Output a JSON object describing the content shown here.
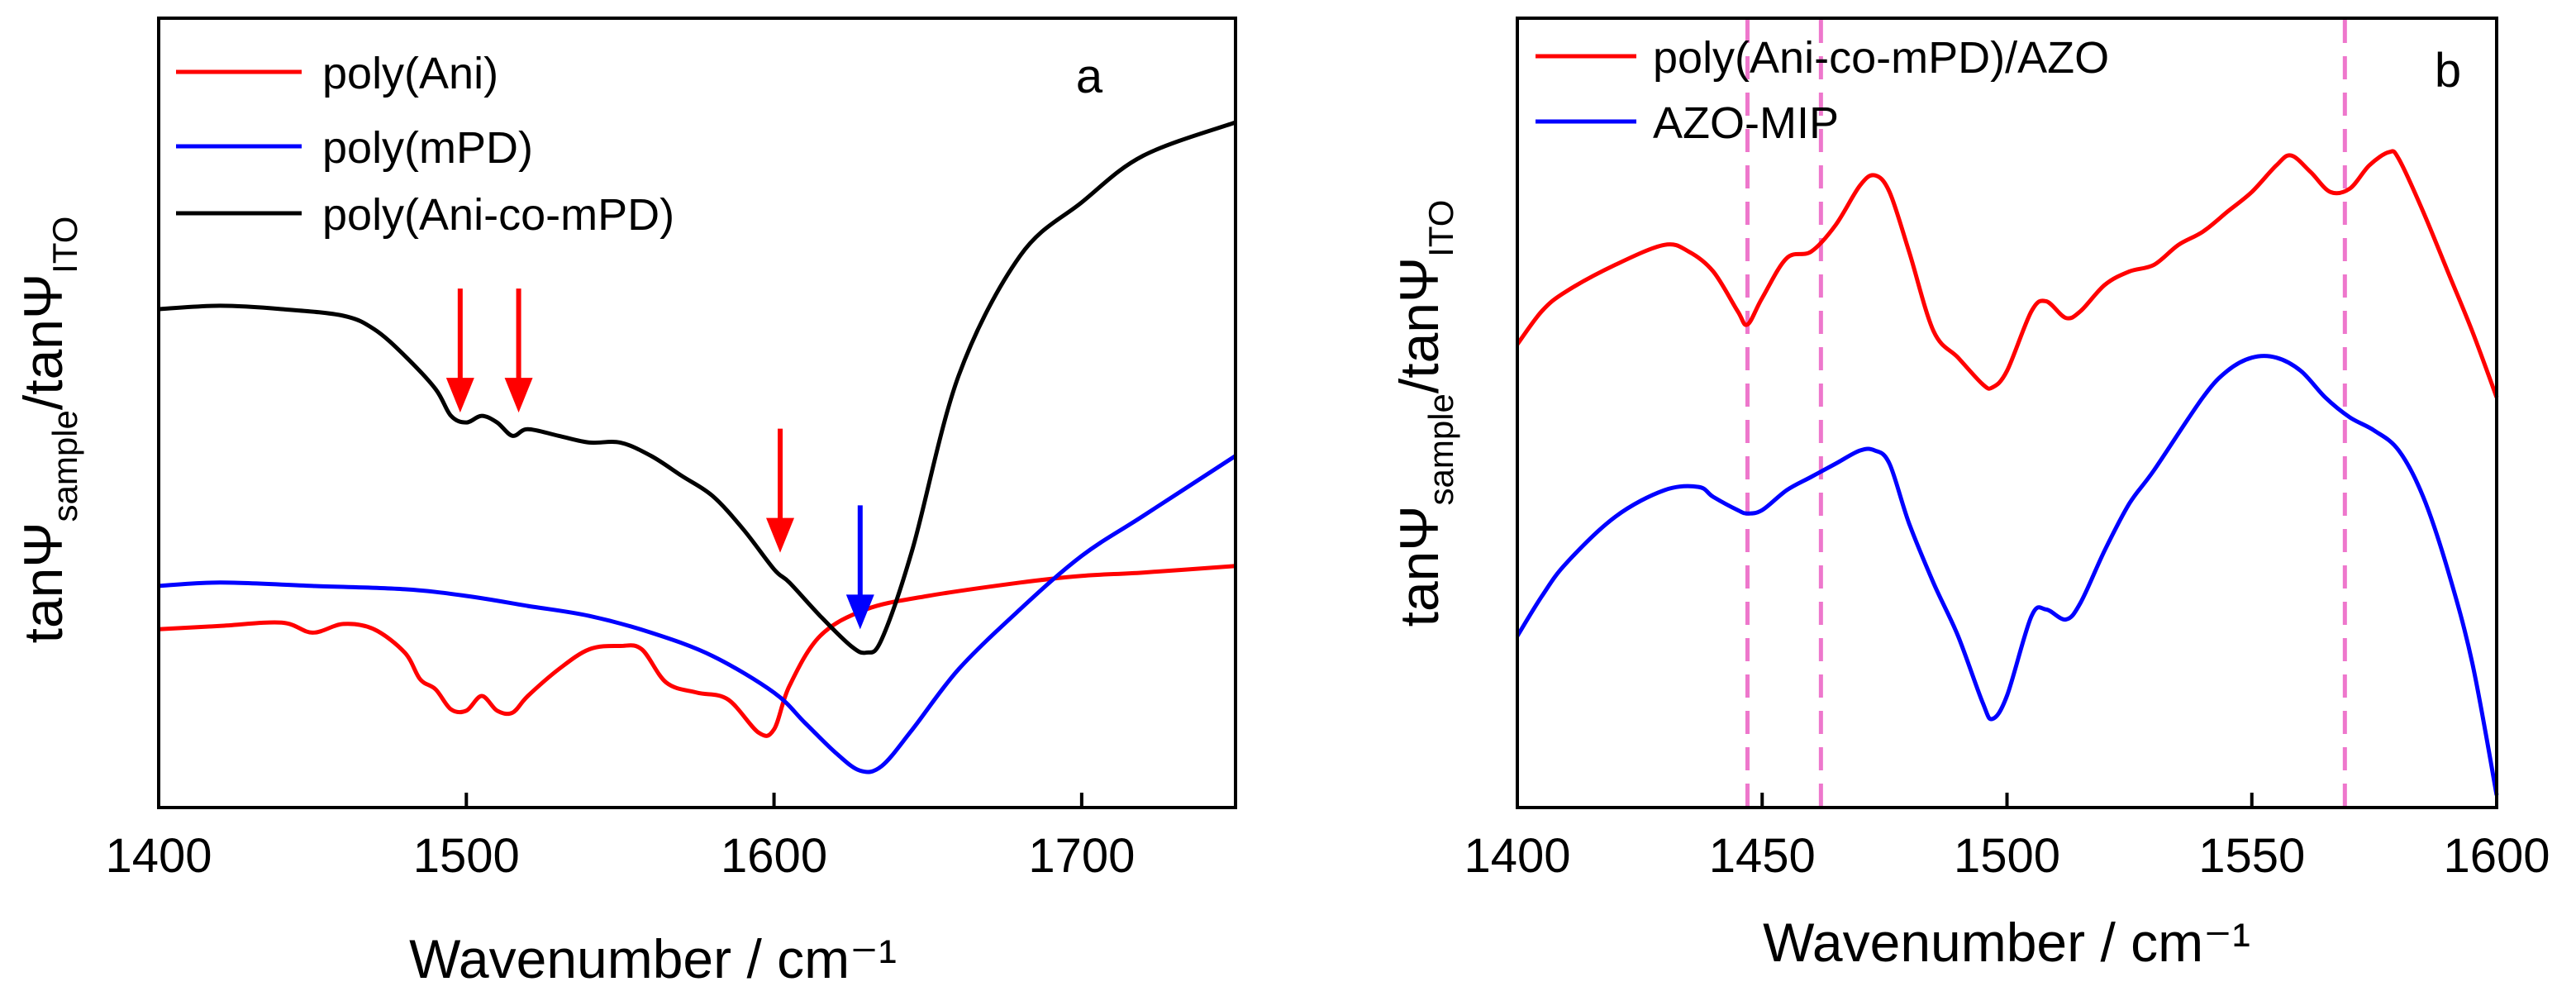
{
  "chart_data": [
    {
      "id": "a",
      "type": "line",
      "panel_label": "a",
      "xlabel": "Wavenumber / cm⁻¹",
      "ylabel": {
        "main": "tanΨ",
        "sub1": "sample",
        "slash": "/tanΨ",
        "sub2": "ITO"
      },
      "xlim": [
        1400,
        1750
      ],
      "ylim": [
        0,
        1
      ],
      "xticks": [
        "1400",
        "1500",
        "1600",
        "1700"
      ],
      "xtick_values": [
        1400,
        1500,
        1600,
        1700
      ],
      "legend": [
        "poly(Ani)",
        "poly(mPD)",
        "poly(Ani-co-mPD)"
      ],
      "series": [
        {
          "name": "poly(Ani)",
          "color": "#ff0000",
          "x": [
            1400,
            1420,
            1440,
            1450,
            1460,
            1470,
            1480,
            1485,
            1490,
            1495,
            1500,
            1505,
            1510,
            1515,
            1520,
            1530,
            1540,
            1550,
            1557,
            1565,
            1575,
            1585,
            1595,
            1600,
            1605,
            1615,
            1630,
            1650,
            1680,
            1700,
            1720,
            1750
          ],
          "y": [
            0.24,
            0.245,
            0.25,
            0.235,
            0.248,
            0.24,
            0.205,
            0.165,
            0.15,
            0.12,
            0.118,
            0.14,
            0.118,
            0.115,
            0.14,
            0.18,
            0.21,
            0.215,
            0.21,
            0.16,
            0.145,
            0.135,
            0.085,
            0.09,
            0.155,
            0.23,
            0.27,
            0.29,
            0.31,
            0.32,
            0.325,
            0.335
          ]
        },
        {
          "name": "poly(mPD)",
          "color": "#0000ff",
          "x": [
            1400,
            1420,
            1450,
            1480,
            1500,
            1520,
            1540,
            1560,
            1580,
            1600,
            1610,
            1620,
            1628,
            1635,
            1645,
            1660,
            1680,
            1700,
            1720,
            1750
          ],
          "y": [
            0.305,
            0.31,
            0.305,
            0.3,
            0.29,
            0.275,
            0.26,
            0.235,
            0.2,
            0.145,
            0.1,
            0.055,
            0.028,
            0.035,
            0.09,
            0.18,
            0.27,
            0.35,
            0.41,
            0.5
          ]
        },
        {
          "name": "poly(Ani-co-mPD)",
          "color": "#000000",
          "x": [
            1400,
            1420,
            1440,
            1460,
            1470,
            1480,
            1490,
            1495,
            1500,
            1505,
            1510,
            1515,
            1520,
            1530,
            1540,
            1550,
            1560,
            1570,
            1580,
            1590,
            1600,
            1605,
            1615,
            1625,
            1630,
            1635,
            1645,
            1660,
            1680,
            1700,
            1720,
            1750
          ],
          "y": [
            0.72,
            0.725,
            0.72,
            0.71,
            0.69,
            0.65,
            0.6,
            0.56,
            0.55,
            0.56,
            0.55,
            0.53,
            0.54,
            0.53,
            0.52,
            0.52,
            0.5,
            0.47,
            0.44,
            0.39,
            0.33,
            0.31,
            0.26,
            0.215,
            0.205,
            0.225,
            0.36,
            0.62,
            0.8,
            0.88,
            0.95,
            1.0
          ]
        }
      ],
      "annotations": [
        {
          "type": "arrow",
          "x": 1498,
          "y": 0.55,
          "color": "#ff0000"
        },
        {
          "type": "arrow",
          "x": 1517,
          "y": 0.55,
          "color": "#ff0000"
        },
        {
          "type": "arrow",
          "x": 1602,
          "y": 0.34,
          "color": "#ff0000"
        },
        {
          "type": "arrow",
          "x": 1628,
          "y": 0.225,
          "color": "#0000ff"
        }
      ]
    },
    {
      "id": "b",
      "type": "line",
      "panel_label": "b",
      "xlabel": "Wavenumber / cm⁻¹",
      "ylabel": {
        "main": "tanΨ",
        "sub1": "sample",
        "slash": "/tanΨ",
        "sub2": "ITO"
      },
      "xlim": [
        1400,
        1600
      ],
      "ylim": [
        0,
        1
      ],
      "xticks": [
        "1400",
        "1450",
        "1500",
        "1550",
        "1600"
      ],
      "xtick_values": [
        1400,
        1450,
        1500,
        1550,
        1600
      ],
      "legend": [
        "poly(Ani-co-mPD)/AZO",
        "AZO-MIP"
      ],
      "dashed_lines_x": [
        1447,
        1462,
        1569
      ],
      "dashed_color": "#ee77cc",
      "series": [
        {
          "name": "poly(Ani-co-mPD)/AZO",
          "color": "#ff0000",
          "x": [
            1400,
            1405,
            1410,
            1420,
            1430,
            1435,
            1440,
            1445,
            1447,
            1450,
            1455,
            1460,
            1465,
            1470,
            1473,
            1476,
            1480,
            1485,
            1490,
            1495,
            1497,
            1500,
            1505,
            1508,
            1512,
            1515,
            1520,
            1525,
            1530,
            1535,
            1540,
            1545,
            1550,
            1555,
            1558,
            1562,
            1566,
            1570,
            1574,
            1578,
            1580,
            1585,
            1590,
            1595,
            1600
          ],
          "y": [
            0.68,
            0.73,
            0.76,
            0.8,
            0.83,
            0.82,
            0.79,
            0.73,
            0.71,
            0.75,
            0.81,
            0.82,
            0.86,
            0.92,
            0.935,
            0.91,
            0.82,
            0.7,
            0.66,
            0.62,
            0.615,
            0.64,
            0.73,
            0.745,
            0.72,
            0.73,
            0.77,
            0.79,
            0.8,
            0.83,
            0.85,
            0.88,
            0.91,
            0.95,
            0.965,
            0.94,
            0.91,
            0.915,
            0.95,
            0.97,
            0.96,
            0.88,
            0.79,
            0.7,
            0.6
          ]
        },
        {
          "name": "AZO-MIP",
          "color": "#0000ff",
          "x": [
            1400,
            1405,
            1410,
            1420,
            1430,
            1437,
            1440,
            1445,
            1447,
            1450,
            1455,
            1460,
            1465,
            1470,
            1473,
            1476,
            1480,
            1485,
            1490,
            1495,
            1497,
            1500,
            1505,
            1508,
            1512,
            1515,
            1520,
            1525,
            1530,
            1540,
            1545,
            1550,
            1555,
            1560,
            1565,
            1570,
            1575,
            1580,
            1585,
            1590,
            1595,
            1600
          ],
          "y": [
            0.24,
            0.3,
            0.35,
            0.42,
            0.46,
            0.465,
            0.45,
            0.43,
            0.425,
            0.43,
            0.46,
            0.48,
            0.5,
            0.52,
            0.52,
            0.5,
            0.41,
            0.32,
            0.24,
            0.14,
            0.115,
            0.15,
            0.27,
            0.28,
            0.265,
            0.29,
            0.37,
            0.44,
            0.49,
            0.6,
            0.64,
            0.66,
            0.66,
            0.64,
            0.6,
            0.57,
            0.55,
            0.52,
            0.45,
            0.34,
            0.2,
            0.0
          ]
        }
      ]
    }
  ]
}
